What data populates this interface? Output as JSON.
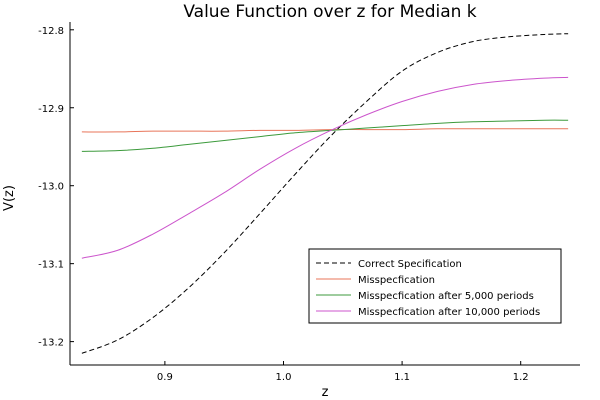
{
  "chart_data": {
    "type": "line",
    "title": "Value Function over z for Median k",
    "xlabel": "z",
    "ylabel": "V(z)",
    "xlim": [
      0.82,
      1.25
    ],
    "ylim": [
      -13.23,
      -12.79
    ],
    "xticks": [
      0.9,
      1.0,
      1.1,
      1.2
    ],
    "xtick_labels": [
      "0.9",
      "1.0",
      "1.1",
      "1.2"
    ],
    "yticks": [
      -13.2,
      -13.1,
      -13.0,
      -12.9,
      -12.8
    ],
    "ytick_labels": [
      "-13.2",
      "-13.1",
      "-13.0",
      "-12.9",
      "-12.8"
    ],
    "grid": false,
    "legend_position": "bottom-right",
    "x": [
      0.83,
      0.86,
      0.89,
      0.92,
      0.95,
      0.98,
      1.01,
      1.04,
      1.07,
      1.1,
      1.13,
      1.16,
      1.19,
      1.22,
      1.24
    ],
    "series": [
      {
        "name": "Correct Specification",
        "color": "#000000",
        "dash": true,
        "values": [
          -13.215,
          -13.198,
          -13.169,
          -13.131,
          -13.086,
          -13.036,
          -12.985,
          -12.936,
          -12.892,
          -12.853,
          -12.829,
          -12.815,
          -12.809,
          -12.806,
          -12.805
        ]
      },
      {
        "name": "Misspecfication",
        "color": "#e8755a",
        "dash": false,
        "values": [
          -12.931,
          -12.931,
          -12.93,
          -12.93,
          -12.93,
          -12.929,
          -12.929,
          -12.928,
          -12.928,
          -12.928,
          -12.927,
          -12.927,
          -12.927,
          -12.927,
          -12.927
        ]
      },
      {
        "name": "Misspecfication after 5,000 periods",
        "color": "#3c9a3c",
        "dash": false,
        "values": [
          -12.956,
          -12.955,
          -12.952,
          -12.947,
          -12.942,
          -12.937,
          -12.932,
          -12.929,
          -12.926,
          -12.923,
          -12.92,
          -12.918,
          -12.917,
          -12.916,
          -12.916
        ]
      },
      {
        "name": "Misspecfication after 10,000 periods",
        "color": "#cc55cc",
        "dash": false,
        "values": [
          -13.093,
          -13.083,
          -13.062,
          -13.036,
          -13.009,
          -12.979,
          -12.952,
          -12.929,
          -12.909,
          -12.892,
          -12.879,
          -12.87,
          -12.865,
          -12.862,
          -12.861
        ]
      }
    ]
  }
}
